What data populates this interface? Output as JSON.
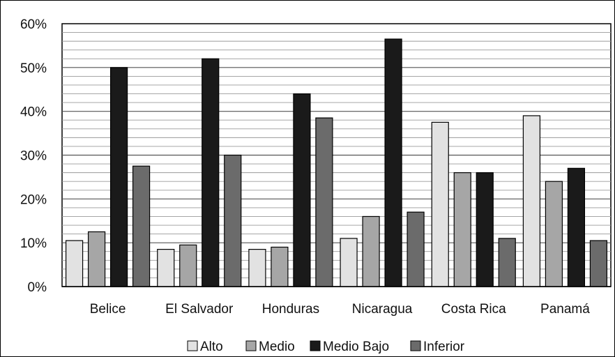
{
  "chart_data": {
    "type": "bar",
    "categories": [
      "Belice",
      "El Salvador",
      "Honduras",
      "Nicaragua",
      "Costa Rica",
      "Panamá"
    ],
    "series": [
      {
        "name": "Alto",
        "color": "#e2e2e2",
        "values": [
          10.5,
          8.5,
          8.5,
          11,
          37.5,
          39
        ]
      },
      {
        "name": "Medio",
        "color": "#a6a6a6",
        "values": [
          12.5,
          9.5,
          9,
          16,
          26,
          24
        ]
      },
      {
        "name": "Medio Bajo",
        "color": "#1a1a1a",
        "values": [
          50,
          52,
          44,
          56.5,
          26,
          27
        ]
      },
      {
        "name": "Inferior",
        "color": "#6b6b6b",
        "values": [
          27.5,
          30,
          38.5,
          17,
          11,
          10.5
        ]
      }
    ],
    "yticks": [
      "0%",
      "10%",
      "20%",
      "30%",
      "40%",
      "50%",
      "60%"
    ],
    "ylim": [
      0,
      60
    ],
    "gridlines": true,
    "legend_position": "bottom"
  }
}
